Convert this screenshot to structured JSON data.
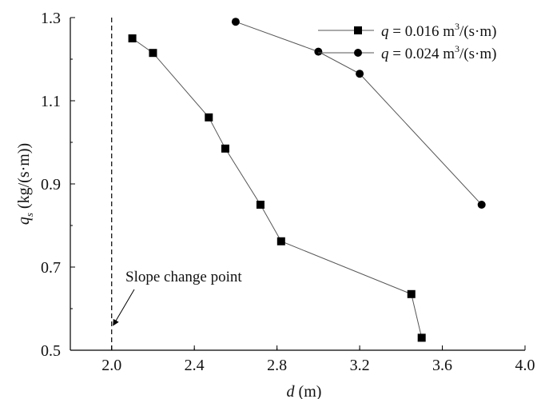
{
  "chart_data": {
    "type": "line",
    "xlabel": {
      "var": "d",
      "unit": " (m)"
    },
    "ylabel": {
      "var": "q",
      "sub": "s",
      "unit": " (kg/(s·m))"
    },
    "xlim": [
      1.8,
      4.0
    ],
    "ylim": [
      0.5,
      1.3
    ],
    "xticks": [
      2.0,
      2.4,
      2.8,
      3.2,
      3.6,
      4.0
    ],
    "xtick_labels": [
      "2.0",
      "2.4",
      "2.8",
      "3.2",
      "3.6",
      "4.0"
    ],
    "yticks": [
      0.5,
      0.7,
      0.9,
      1.1,
      1.3
    ],
    "ytick_labels": [
      "0.5",
      "0.7",
      "0.9",
      "1.1",
      "1.3"
    ],
    "grid": false,
    "legend_position": "top-right",
    "series": [
      {
        "name": "q = 0.016 m3/(s·m)",
        "label": {
          "q": "q",
          "value": " = 0.016 m",
          "sup": "3",
          "unit": "/(s·m)"
        },
        "marker": "square",
        "color": "#000000",
        "points": [
          [
            2.1,
            1.25
          ],
          [
            2.2,
            1.215
          ],
          [
            2.47,
            1.06
          ],
          [
            2.55,
            0.985
          ],
          [
            2.72,
            0.85
          ],
          [
            2.82,
            0.762
          ],
          [
            3.45,
            0.635
          ],
          [
            3.5,
            0.53
          ]
        ]
      },
      {
        "name": "q = 0.024 m3/(s·m)",
        "label": {
          "q": "q",
          "value": " = 0.024 m",
          "sup": "3",
          "unit": "/(s·m)"
        },
        "marker": "circle",
        "color": "#000000",
        "points": [
          [
            2.6,
            1.29
          ],
          [
            3.0,
            1.218
          ],
          [
            3.2,
            1.165
          ],
          [
            3.79,
            0.85
          ]
        ]
      }
    ],
    "reference_line": {
      "x": 2.0,
      "style": "dashed"
    },
    "annotation": {
      "text": "Slope change point",
      "arrow_to": [
        2.0,
        0.56
      ]
    }
  }
}
